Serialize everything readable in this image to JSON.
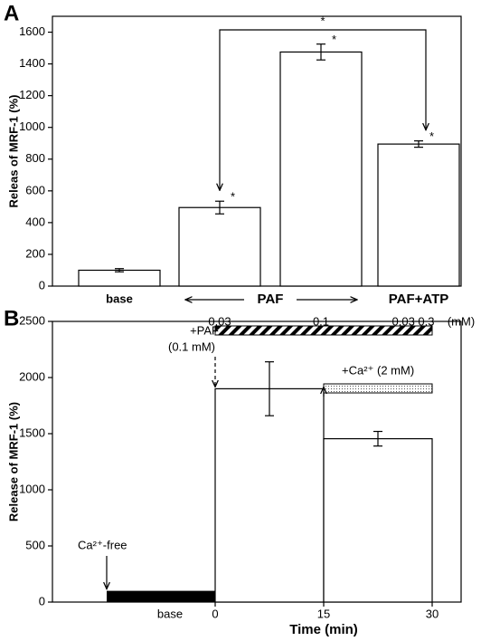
{
  "chart_data": [
    {
      "type": "bar",
      "panel": "A",
      "ylabel": "Releas of MRF-1 (%)",
      "categories": [
        "base",
        "0.03",
        "0.1",
        "0.03  0.3"
      ],
      "groups": [
        "PAF",
        "PAF+ATP"
      ],
      "unit": "(mM)",
      "values": [
        100,
        495,
        1475,
        895
      ],
      "errors": [
        10,
        40,
        50,
        20
      ],
      "significance": "*",
      "ylim": [
        0,
        1700
      ],
      "yticks": [
        0,
        200,
        400,
        600,
        800,
        1000,
        1200,
        1400,
        1600
      ]
    },
    {
      "type": "histogram",
      "panel": "B",
      "ylabel": "Release of MRF-1 (%)",
      "xlabel": "Time (min)",
      "bins": [
        0,
        15,
        30
      ],
      "values": [
        1900,
        1455
      ],
      "errors": [
        240,
        65
      ],
      "base_bar": {
        "label": "base",
        "bins": [
          -15,
          0
        ],
        "value": 100
      },
      "periods": [
        {
          "label": "+PAF",
          "detail": "(0.1 mM)",
          "bins": [
            0,
            30
          ]
        },
        {
          "label": "+Ca²⁺ (2 mM)",
          "bins": [
            15,
            30
          ]
        }
      ],
      "annotation": "Ca²⁺-free",
      "xlim": [
        -22.5,
        34
      ],
      "xticks": [
        0,
        15,
        30
      ],
      "ylim": [
        0,
        2500
      ],
      "yticks": [
        0,
        500,
        1000,
        1500,
        2000,
        2500
      ]
    }
  ]
}
